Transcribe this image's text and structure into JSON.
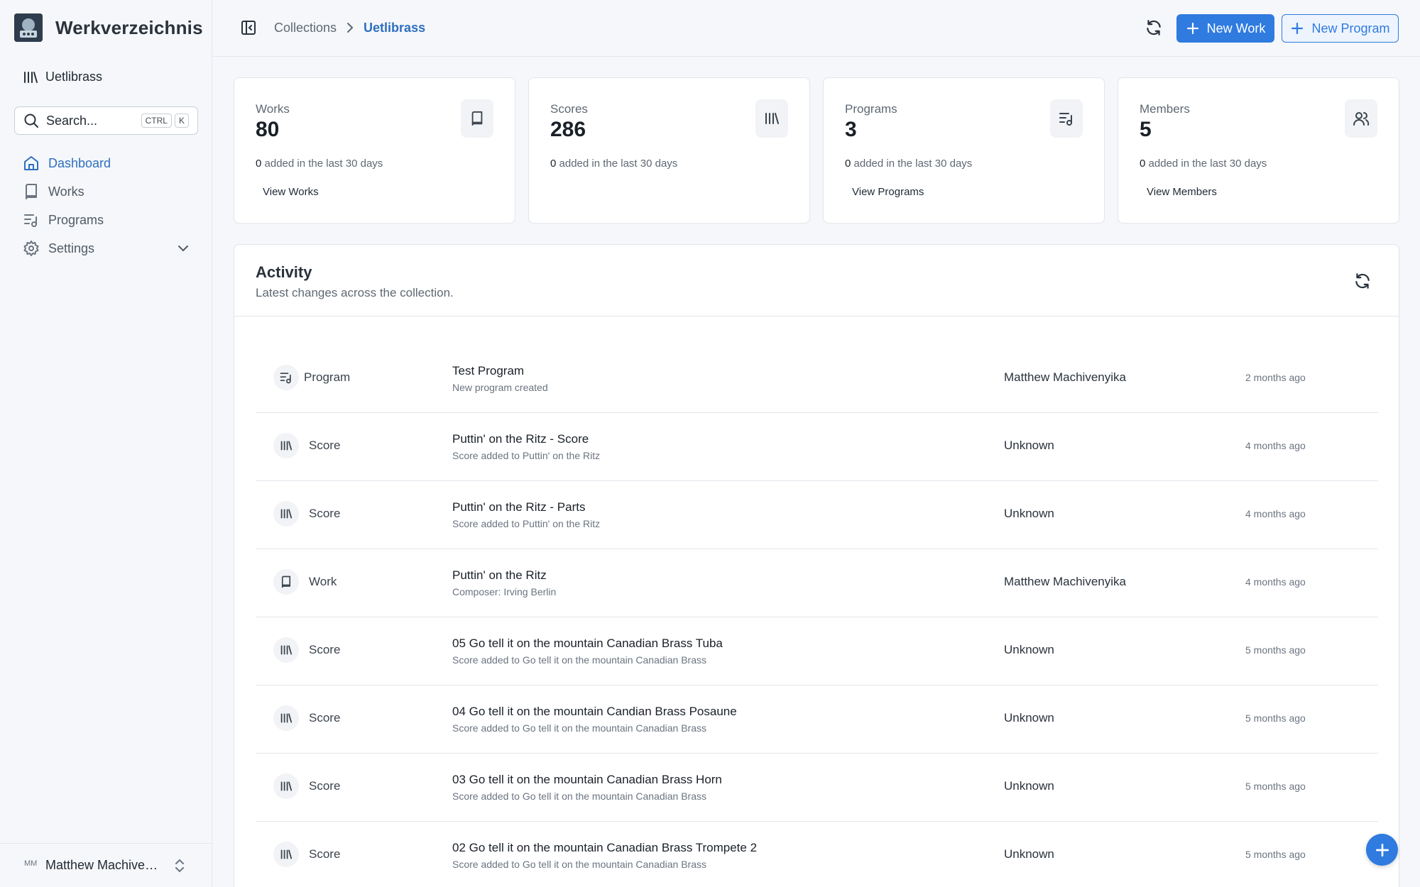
{
  "app": {
    "title": "Werkverzeichnis"
  },
  "sidebar": {
    "collection_name": "Uetlibrass",
    "search": {
      "placeholder": "Search...",
      "shortcut": [
        "CTRL",
        "K"
      ]
    },
    "items": [
      {
        "label": "Dashboard",
        "icon": "home-icon",
        "active": true
      },
      {
        "label": "Works",
        "icon": "book-icon"
      },
      {
        "label": "Programs",
        "icon": "list-music-icon"
      },
      {
        "label": "Settings",
        "icon": "gear-icon",
        "expandable": true
      }
    ],
    "user": {
      "initials": "MM",
      "name": "Matthew Machivenyika"
    }
  },
  "header": {
    "breadcrumb": [
      "Collections",
      "Uetlibrass"
    ],
    "new_work_label": "New Work",
    "new_program_label": "New Program"
  },
  "stats": [
    {
      "label": "Works",
      "value": "80",
      "added": "0",
      "added_text": "added in the last 30 days",
      "link": "View Works",
      "icon": "book-icon"
    },
    {
      "label": "Scores",
      "value": "286",
      "added": "0",
      "added_text": "added in the last 30 days",
      "link": "",
      "icon": "library-icon"
    },
    {
      "label": "Programs",
      "value": "3",
      "added": "0",
      "added_text": "added in the last 30 days",
      "link": "View Programs",
      "icon": "list-music-icon"
    },
    {
      "label": "Members",
      "value": "5",
      "added": "0",
      "added_text": "added in the last 30 days",
      "link": "View Members",
      "icon": "users-icon"
    }
  ],
  "activity": {
    "title": "Activity",
    "subtitle": "Latest changes across the collection.",
    "rows": [
      {
        "type": "Program",
        "icon": "list-music-icon",
        "title": "Test Program",
        "desc": "New program created",
        "user": "Matthew Machivenyika",
        "time": "2 months ago"
      },
      {
        "type": "Score",
        "icon": "library-icon",
        "title": "Puttin' on the Ritz - Score",
        "desc": "Score added to Puttin' on the Ritz",
        "user": "Unknown",
        "time": "4 months ago"
      },
      {
        "type": "Score",
        "icon": "library-icon",
        "title": "Puttin' on the Ritz - Parts",
        "desc": "Score added to Puttin' on the Ritz",
        "user": "Unknown",
        "time": "4 months ago"
      },
      {
        "type": "Work",
        "icon": "book-icon",
        "title": "Puttin' on the Ritz",
        "desc": "Composer: Irving Berlin",
        "user": "Matthew Machivenyika",
        "time": "4 months ago"
      },
      {
        "type": "Score",
        "icon": "library-icon",
        "title": "05 Go tell it on the mountain Canadian Brass Tuba",
        "desc": "Score added to Go tell it on the mountain Canadian Brass",
        "user": "Unknown",
        "time": "5 months ago"
      },
      {
        "type": "Score",
        "icon": "library-icon",
        "title": "04 Go tell it on the mountain Candian Brass Posaune",
        "desc": "Score added to Go tell it on the mountain Canadian Brass",
        "user": "Unknown",
        "time": "5 months ago"
      },
      {
        "type": "Score",
        "icon": "library-icon",
        "title": "03 Go tell it on the mountain Canadian Brass Horn",
        "desc": "Score added to Go tell it on the mountain Canadian Brass",
        "user": "Unknown",
        "time": "5 months ago"
      },
      {
        "type": "Score",
        "icon": "library-icon",
        "title": "02 Go tell it on the mountain Canadian Brass Trompete 2",
        "desc": "Score added to Go tell it on the mountain Canadian Brass",
        "user": "Unknown",
        "time": "5 months ago"
      }
    ]
  },
  "colors": {
    "accent": "#2f7be0",
    "active_nav": "#2e6fc0",
    "background": "#f5f7fa"
  }
}
